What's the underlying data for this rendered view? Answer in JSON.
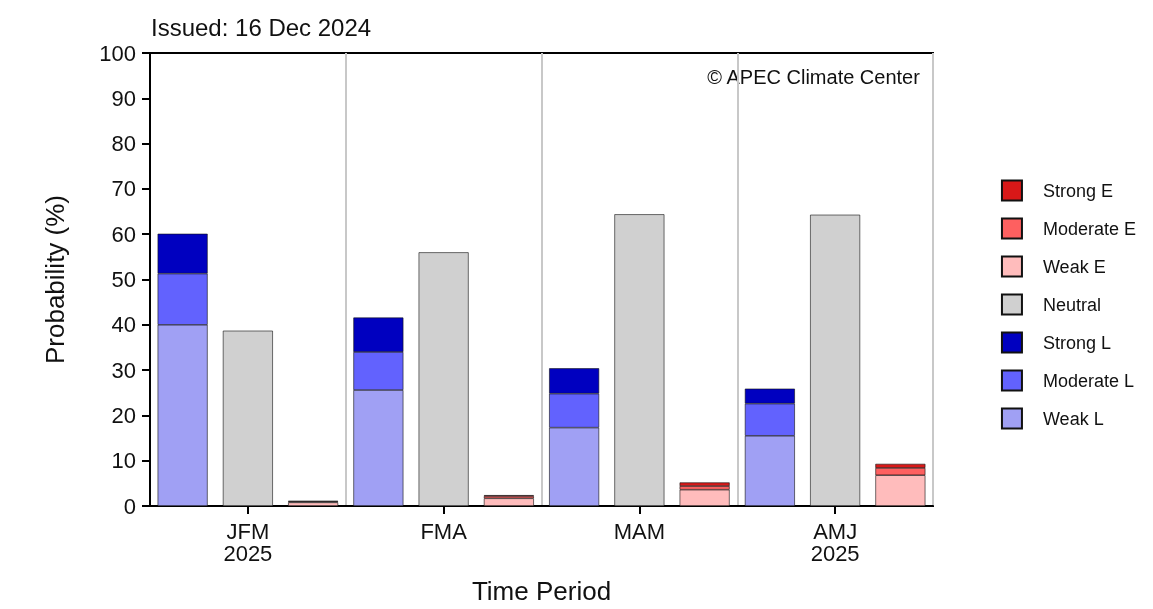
{
  "chart_data": {
    "type": "bar",
    "title": "Issued: 16 Dec 2024",
    "xlabel": "Time Period",
    "ylabel": "Probability (%)",
    "categories": [
      null,
      "JFM\n2025",
      null,
      null,
      "FMA",
      null,
      null,
      "MAM",
      null,
      null,
      "AMJ\n2025",
      null
    ],
    "stacked": true,
    "series": [
      {
        "name": "Weak L",
        "color": "#a0a0f4",
        "values": [
          40.0,
          null,
          null,
          25.6,
          null,
          null,
          17.3,
          null,
          null,
          15.5,
          null,
          null
        ]
      },
      {
        "name": "Moderate L",
        "color": "#6262fe",
        "values": [
          11.3,
          null,
          null,
          8.4,
          null,
          null,
          7.5,
          null,
          null,
          7.1,
          null,
          null
        ]
      },
      {
        "name": "Strong L",
        "color": "#0000c0",
        "values": [
          8.8,
          null,
          null,
          7.6,
          null,
          null,
          5.6,
          null,
          null,
          3.3,
          null,
          null
        ]
      },
      {
        "name": "Neutral",
        "color": "#d0d0d0",
        "values": [
          null,
          38.7,
          null,
          null,
          56.0,
          null,
          null,
          64.4,
          null,
          null,
          64.3,
          null
        ]
      },
      {
        "name": "Weak E",
        "color": "#ffbcbc",
        "values": [
          null,
          null,
          0.8,
          null,
          null,
          1.7,
          null,
          null,
          3.6,
          null,
          null,
          6.8
        ]
      },
      {
        "name": "Moderate E",
        "color": "#fe6060",
        "values": [
          null,
          null,
          0.2,
          null,
          null,
          0.5,
          null,
          null,
          0.8,
          null,
          null,
          1.6
        ]
      },
      {
        "name": "Strong E",
        "color": "#d81818",
        "values": [
          null,
          null,
          0.1,
          null,
          null,
          0.2,
          null,
          null,
          0.8,
          null,
          null,
          0.9
        ]
      }
    ],
    "ylim": [
      0,
      100
    ],
    "yticks": [
      0,
      10,
      20,
      30,
      40,
      50,
      60,
      70,
      80,
      90,
      100
    ],
    "grid": "x",
    "legend": "right",
    "annotations": [
      "© APEC Climate Center"
    ]
  }
}
